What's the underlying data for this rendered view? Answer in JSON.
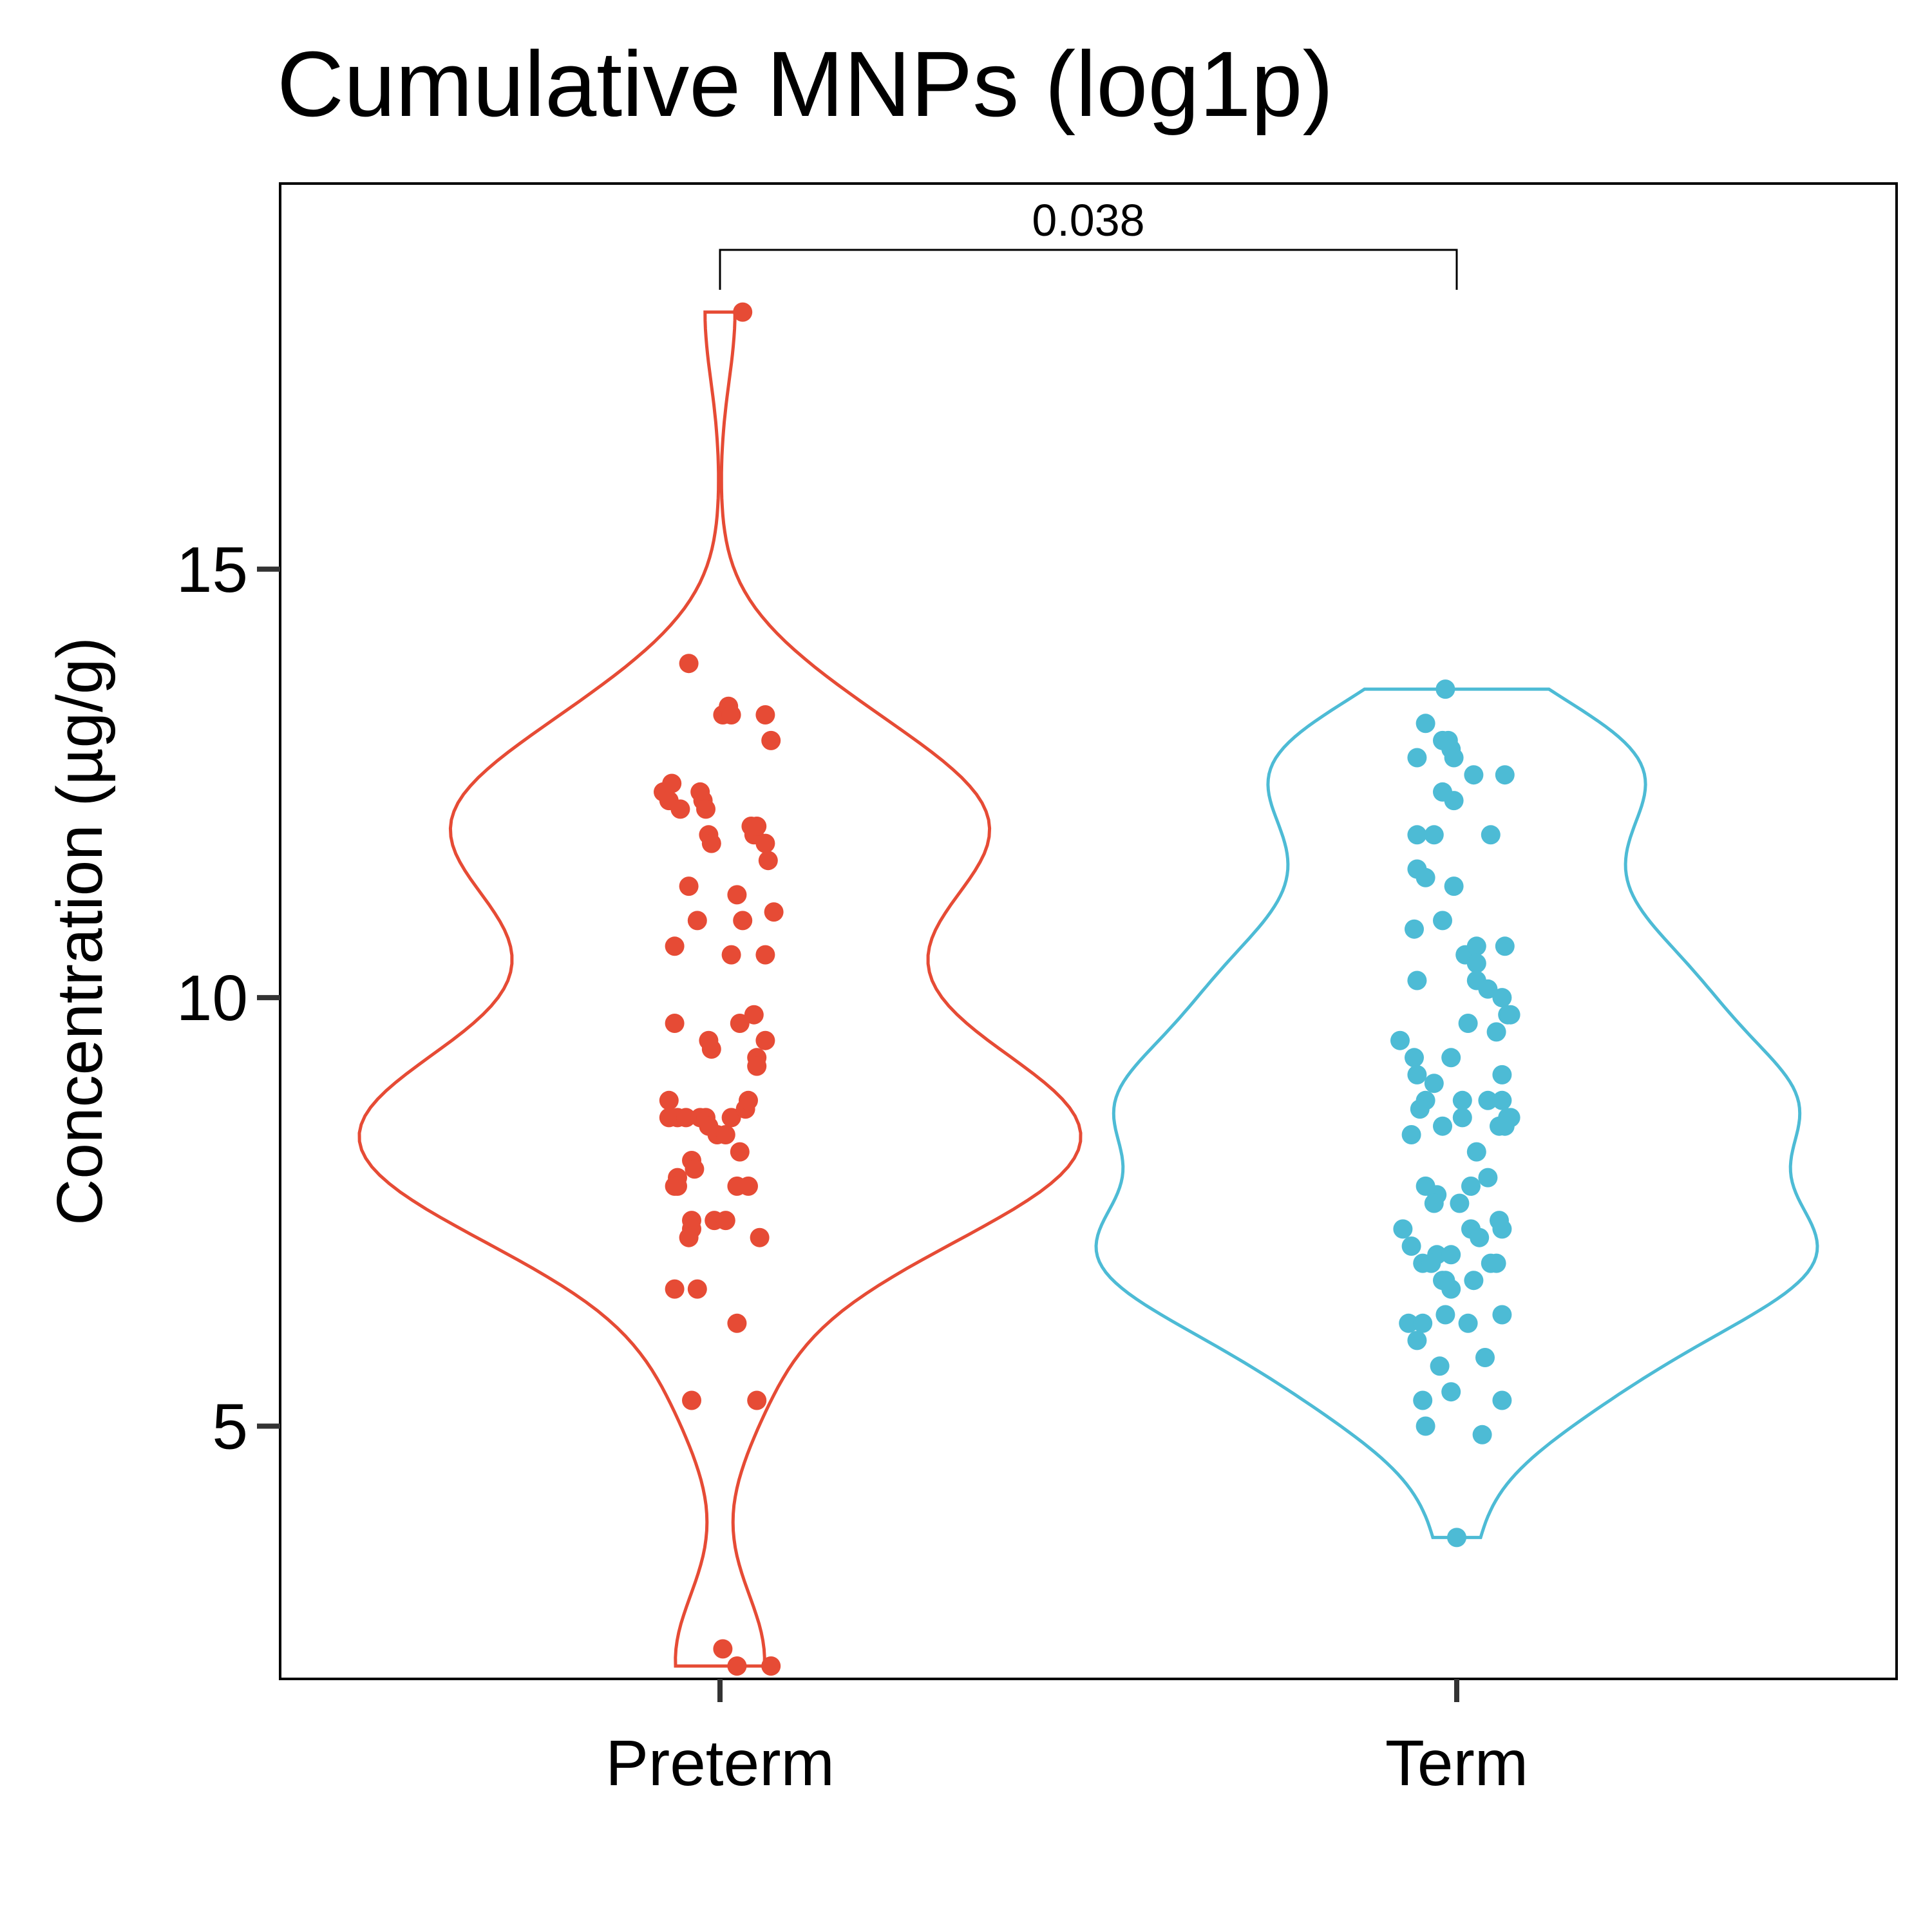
{
  "chart_data": {
    "type": "violin",
    "title": "Cumulative MNPs (log1p)",
    "xlabel": "",
    "ylabel": "Concentration (µg/g)",
    "categories": [
      "Preterm",
      "Term"
    ],
    "yticks": [
      5,
      10,
      15
    ],
    "ylim": [
      2.05,
      19.5
    ],
    "grid": false,
    "legend": "none",
    "colors": {
      "Preterm": "#E64B35",
      "Term": "#4DBBD5"
    },
    "comparison": {
      "groups": [
        "Preterm",
        "Term"
      ],
      "label": "0.038"
    },
    "series": [
      {
        "name": "Preterm",
        "violin_range": [
          2.2,
          18.0
        ],
        "points": [
          [
            0.08,
            18.0
          ],
          [
            -0.11,
            13.9
          ],
          [
            0.01,
            13.3
          ],
          [
            0.03,
            13.4
          ],
          [
            0.04,
            13.3
          ],
          [
            0.16,
            13.3
          ],
          [
            0.18,
            13.0
          ],
          [
            -0.2,
            12.4
          ],
          [
            -0.17,
            12.5
          ],
          [
            -0.18,
            12.3
          ],
          [
            -0.14,
            12.2
          ],
          [
            -0.07,
            12.4
          ],
          [
            -0.06,
            12.3
          ],
          [
            -0.05,
            12.2
          ],
          [
            -0.04,
            11.9
          ],
          [
            -0.03,
            11.8
          ],
          [
            0.11,
            12.0
          ],
          [
            0.12,
            11.9
          ],
          [
            0.13,
            12.0
          ],
          [
            0.16,
            11.8
          ],
          [
            0.17,
            11.6
          ],
          [
            -0.11,
            11.3
          ],
          [
            -0.08,
            10.9
          ],
          [
            0.06,
            11.2
          ],
          [
            0.08,
            10.9
          ],
          [
            0.19,
            11.0
          ],
          [
            -0.16,
            10.6
          ],
          [
            0.04,
            10.5
          ],
          [
            0.16,
            10.5
          ],
          [
            -0.16,
            9.7
          ],
          [
            0.07,
            9.7
          ],
          [
            0.12,
            9.8
          ],
          [
            -0.04,
            9.5
          ],
          [
            -0.03,
            9.4
          ],
          [
            0.13,
            9.3
          ],
          [
            0.13,
            9.2
          ],
          [
            0.16,
            9.5
          ],
          [
            -0.18,
            8.8
          ],
          [
            -0.18,
            8.6
          ],
          [
            -0.15,
            8.6
          ],
          [
            -0.12,
            8.6
          ],
          [
            -0.07,
            8.6
          ],
          [
            -0.05,
            8.6
          ],
          [
            -0.04,
            8.5
          ],
          [
            -0.01,
            8.4
          ],
          [
            0.02,
            8.4
          ],
          [
            0.04,
            8.6
          ],
          [
            0.09,
            8.7
          ],
          [
            0.1,
            8.8
          ],
          [
            0.07,
            8.2
          ],
          [
            -0.1,
            8.1
          ],
          [
            -0.09,
            8.0
          ],
          [
            -0.15,
            7.9
          ],
          [
            -0.16,
            7.8
          ],
          [
            -0.15,
            7.8
          ],
          [
            0.06,
            7.8
          ],
          [
            0.1,
            7.8
          ],
          [
            -0.1,
            7.4
          ],
          [
            -0.1,
            7.3
          ],
          [
            -0.11,
            7.2
          ],
          [
            -0.02,
            7.4
          ],
          [
            0.02,
            7.4
          ],
          [
            0.14,
            7.2
          ],
          [
            -0.16,
            6.6
          ],
          [
            -0.08,
            6.6
          ],
          [
            0.06,
            6.2
          ],
          [
            -0.1,
            5.3
          ],
          [
            0.13,
            5.3
          ],
          [
            0.01,
            2.4
          ],
          [
            0.06,
            2.2
          ],
          [
            0.18,
            2.2
          ]
        ]
      },
      {
        "name": "Term",
        "violin_range": [
          3.7,
          13.6
        ],
        "points": [
          [
            -0.04,
            13.6
          ],
          [
            -0.11,
            13.2
          ],
          [
            -0.05,
            13.0
          ],
          [
            -0.03,
            13.0
          ],
          [
            -0.02,
            12.9
          ],
          [
            -0.14,
            12.8
          ],
          [
            -0.01,
            12.8
          ],
          [
            0.06,
            12.6
          ],
          [
            0.17,
            12.6
          ],
          [
            -0.05,
            12.4
          ],
          [
            -0.01,
            12.3
          ],
          [
            -0.14,
            11.9
          ],
          [
            -0.08,
            11.9
          ],
          [
            0.12,
            11.9
          ],
          [
            -0.14,
            11.5
          ],
          [
            -0.11,
            11.4
          ],
          [
            -0.01,
            11.3
          ],
          [
            -0.15,
            10.8
          ],
          [
            -0.05,
            10.9
          ],
          [
            0.03,
            10.5
          ],
          [
            0.07,
            10.6
          ],
          [
            0.07,
            10.4
          ],
          [
            0.07,
            10.2
          ],
          [
            0.11,
            10.1
          ],
          [
            0.17,
            10.6
          ],
          [
            -0.14,
            10.2
          ],
          [
            0.16,
            10.0
          ],
          [
            0.18,
            9.8
          ],
          [
            0.19,
            9.8
          ],
          [
            -0.2,
            9.5
          ],
          [
            -0.15,
            9.3
          ],
          [
            -0.14,
            9.1
          ],
          [
            -0.08,
            9.0
          ],
          [
            -0.02,
            9.3
          ],
          [
            0.04,
            9.7
          ],
          [
            0.14,
            9.6
          ],
          [
            0.16,
            9.1
          ],
          [
            -0.11,
            8.8
          ],
          [
            -0.13,
            8.7
          ],
          [
            -0.05,
            8.5
          ],
          [
            0.02,
            8.8
          ],
          [
            0.02,
            8.6
          ],
          [
            0.11,
            8.8
          ],
          [
            0.16,
            8.8
          ],
          [
            0.18,
            8.6
          ],
          [
            0.19,
            8.6
          ],
          [
            0.15,
            8.5
          ],
          [
            0.17,
            8.5
          ],
          [
            -0.16,
            8.4
          ],
          [
            0.07,
            8.2
          ],
          [
            0.11,
            7.9
          ],
          [
            -0.11,
            7.8
          ],
          [
            -0.07,
            7.7
          ],
          [
            -0.08,
            7.6
          ],
          [
            0.01,
            7.6
          ],
          [
            0.05,
            7.8
          ],
          [
            0.15,
            7.4
          ],
          [
            0.16,
            7.3
          ],
          [
            -0.19,
            7.3
          ],
          [
            -0.16,
            7.1
          ],
          [
            0.05,
            7.3
          ],
          [
            0.08,
            7.2
          ],
          [
            -0.07,
            7.0
          ],
          [
            -0.02,
            7.0
          ],
          [
            -0.12,
            6.9
          ],
          [
            -0.09,
            6.9
          ],
          [
            0.12,
            6.9
          ],
          [
            0.14,
            6.9
          ],
          [
            -0.05,
            6.7
          ],
          [
            -0.04,
            6.7
          ],
          [
            -0.02,
            6.6
          ],
          [
            0.06,
            6.7
          ],
          [
            -0.17,
            6.2
          ],
          [
            -0.12,
            6.2
          ],
          [
            -0.04,
            6.3
          ],
          [
            0.04,
            6.2
          ],
          [
            0.16,
            6.3
          ],
          [
            -0.14,
            6.0
          ],
          [
            -0.06,
            5.7
          ],
          [
            0.1,
            5.8
          ],
          [
            -0.12,
            5.3
          ],
          [
            -0.02,
            5.4
          ],
          [
            0.16,
            5.3
          ],
          [
            -0.11,
            5.0
          ],
          [
            0.09,
            4.9
          ],
          [
            0.0,
            3.7
          ]
        ]
      }
    ]
  }
}
